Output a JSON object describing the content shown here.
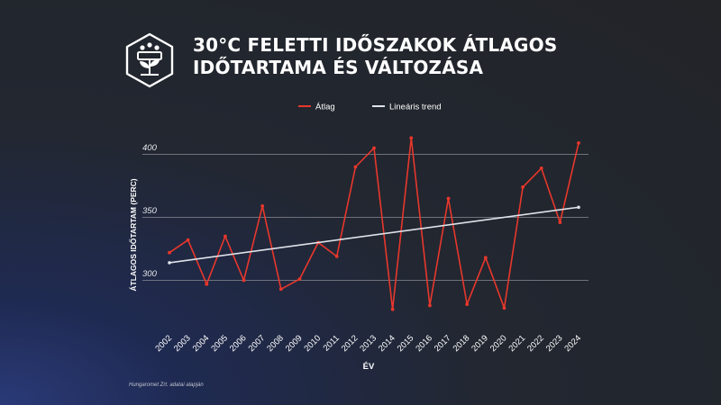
{
  "header": {
    "title_line1": "30°C FELETTI IDŐSZAKOK ÁTLAGOS",
    "title_line2": "IDŐTARTAMA ÉS VÁLTOZÁSA"
  },
  "source_note": "Hungaromet Zrt. adatai alapján",
  "colors": {
    "average": "#e8372c",
    "trend": "#dfe3ea",
    "grid": "#8a8d94",
    "text": "#ffffff"
  },
  "chart_data": {
    "type": "line",
    "title": "30°C FELETTI IDŐSZAKOK ÁTLAGOS IDŐTARTAMA ÉS VÁLTOZÁSA",
    "xlabel": "ÉV",
    "ylabel": "ÁTLAGOS IDŐTARTAM (PERC)",
    "ylim": [
      272,
      420
    ],
    "yticks": [
      300,
      350,
      400
    ],
    "grid": "horizontal",
    "legend_position": "top-center",
    "categories": [
      "2002",
      "2003",
      "2004",
      "2005",
      "2006",
      "2007",
      "2008",
      "2009",
      "2010",
      "2011",
      "2012",
      "2013",
      "2014",
      "2015",
      "2016",
      "2017",
      "2018",
      "2019",
      "2020",
      "2021",
      "2022",
      "2023",
      "2024"
    ],
    "series": [
      {
        "name": "Átlag",
        "color": "#e8372c",
        "values": [
          322,
          332,
          297,
          335,
          300,
          359,
          293,
          301,
          330,
          319,
          390,
          405,
          277,
          413,
          280,
          365,
          281,
          318,
          278,
          374,
          389,
          346,
          409
        ]
      },
      {
        "name": "Lineáris trend",
        "color": "#dfe3ea",
        "values": [
          314,
          316,
          318,
          320,
          322,
          324,
          326,
          328,
          330,
          332,
          334,
          336,
          338,
          340,
          342,
          344,
          346,
          348,
          350,
          352,
          354,
          356,
          358
        ]
      }
    ]
  }
}
